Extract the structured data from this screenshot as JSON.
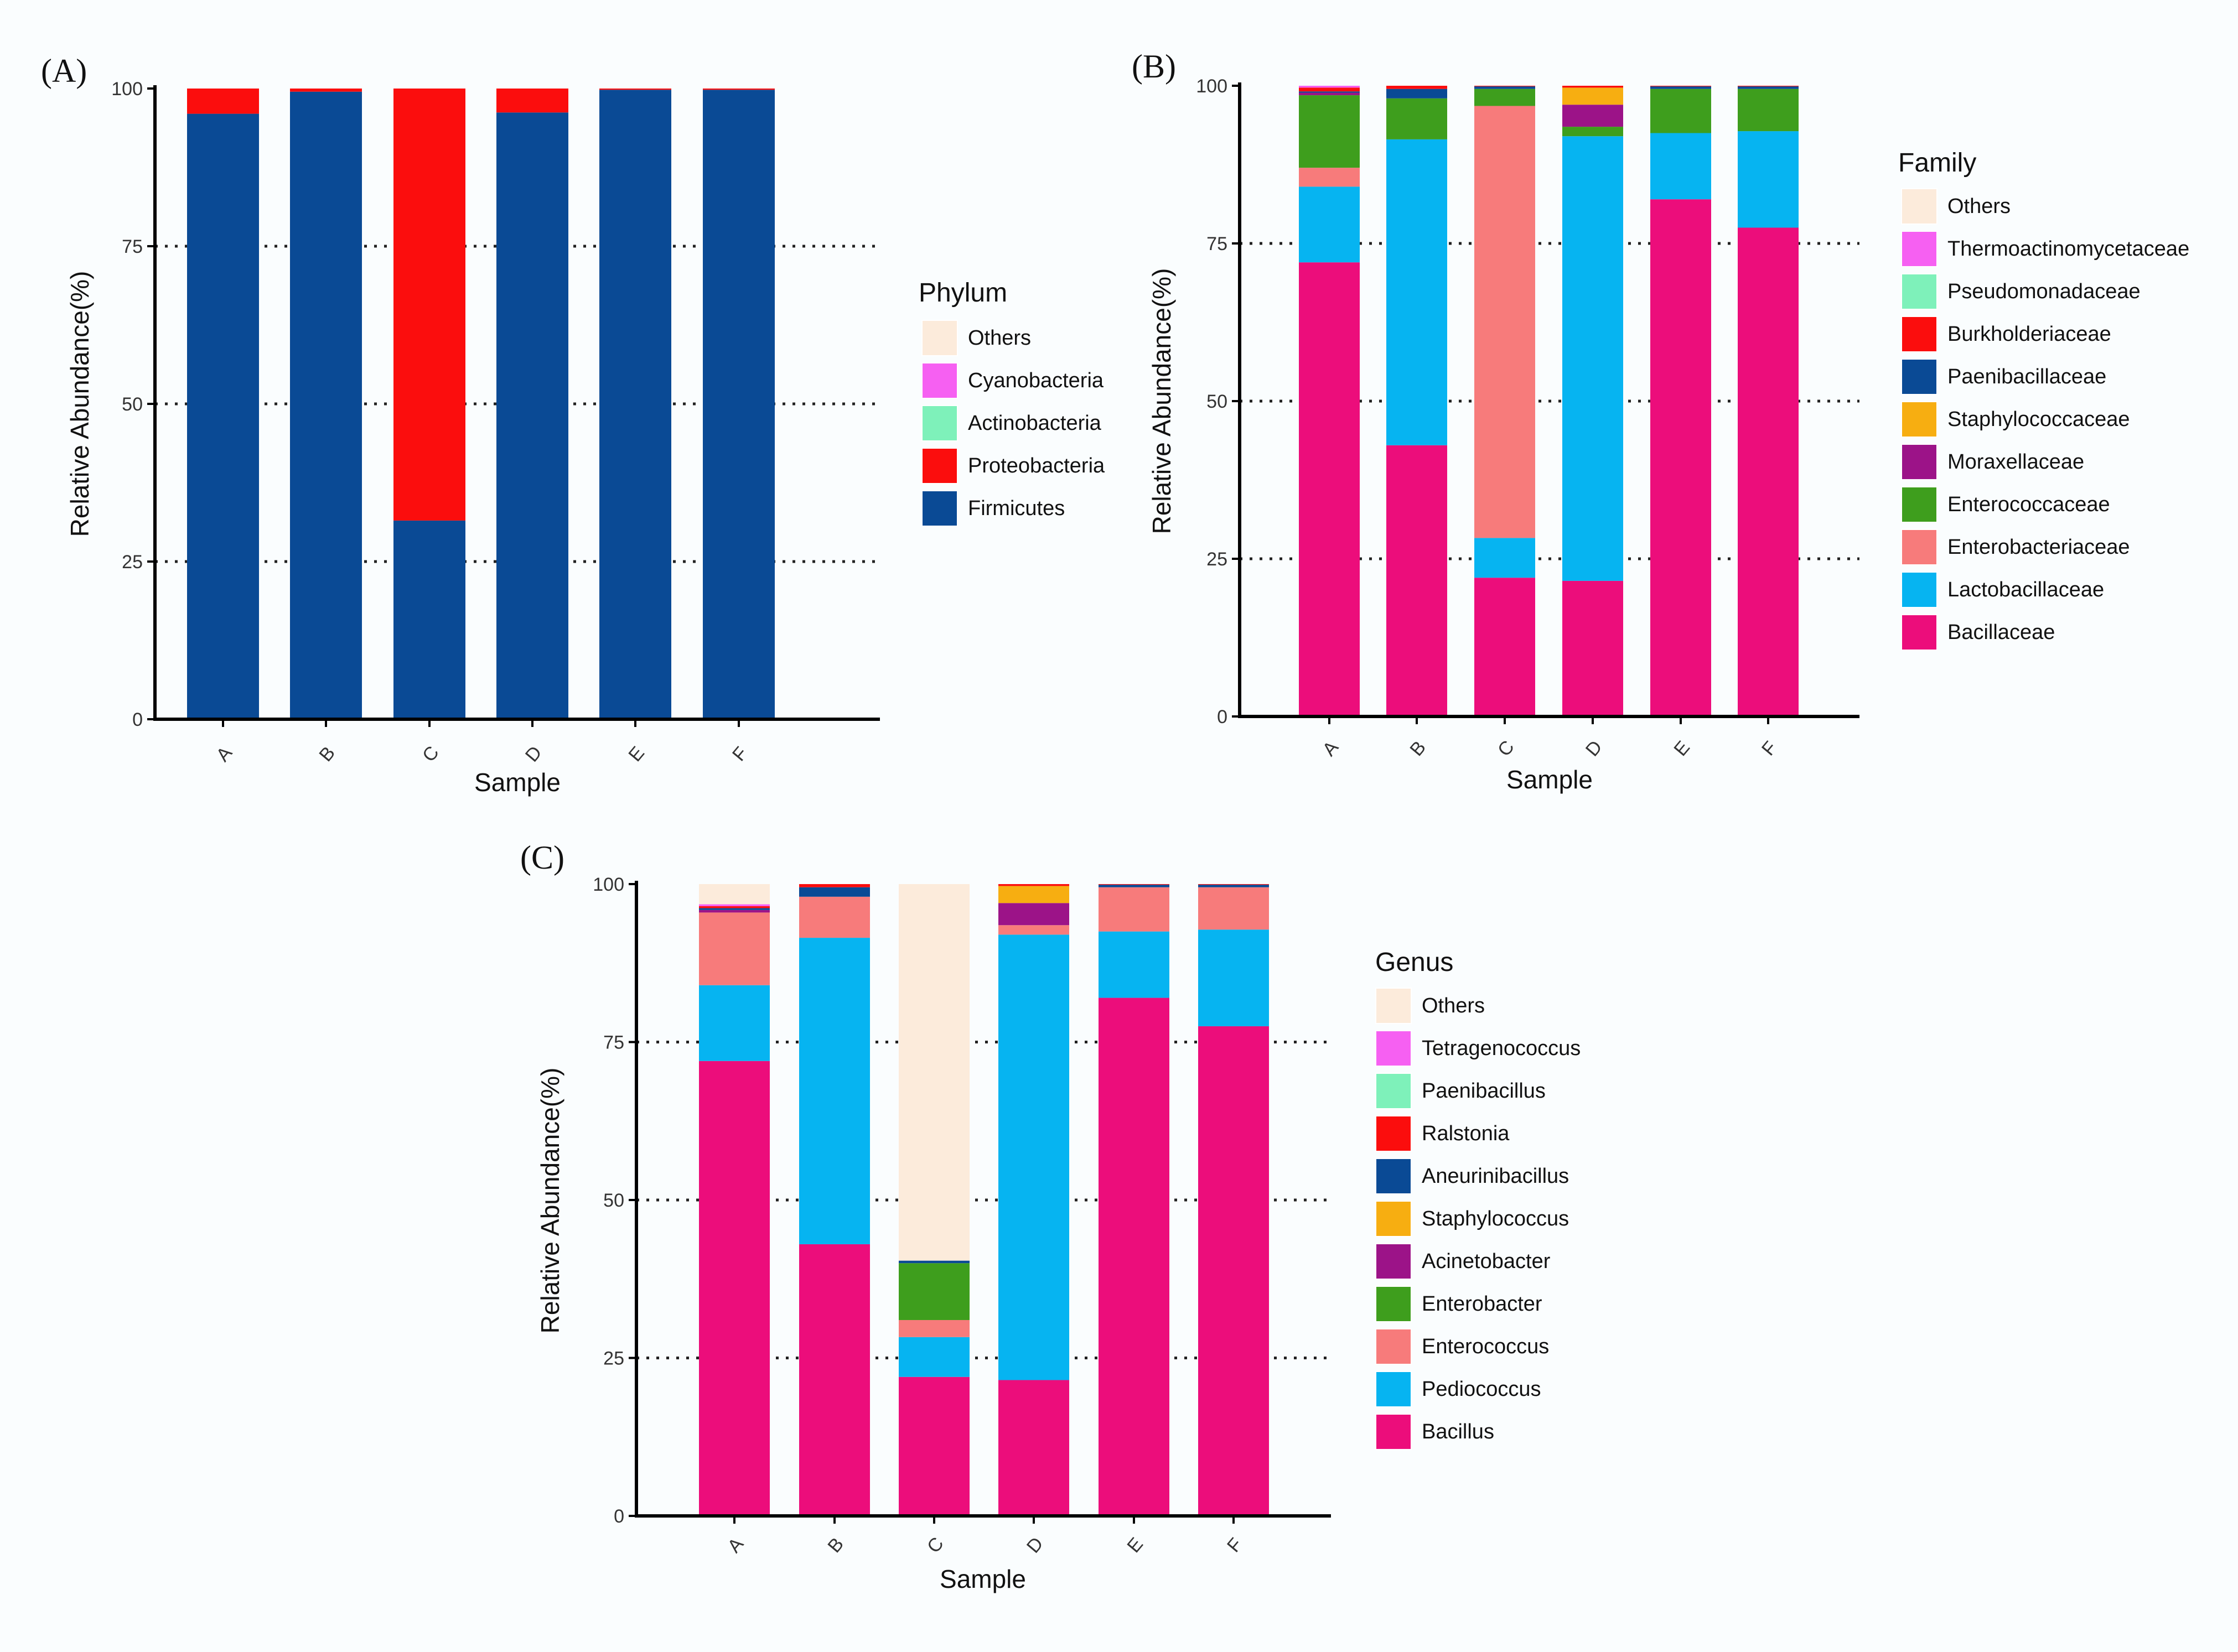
{
  "chart_data": [
    {
      "panel_label": "(A)",
      "type": "bar",
      "stacked": true,
      "categories": [
        "A",
        "B",
        "C",
        "D",
        "E",
        "F"
      ],
      "xlabel": "Sample",
      "ylabel": "Relative Abundance(%)",
      "ylim": [
        0,
        100
      ],
      "yticks": [
        0,
        25,
        50,
        75,
        100
      ],
      "grid": "dotted horizontal lines at 25, 50, 75",
      "legend_title": "Phylum",
      "legend_placement": "right",
      "legend_order": [
        "Others",
        "Cyanobacteria",
        "Actinobacteria",
        "Proteobacteria",
        "Firmicutes"
      ],
      "series": [
        {
          "name": "Firmicutes",
          "color": "#0a4a95",
          "values": [
            96.0,
            99.5,
            31.5,
            96.2,
            99.8,
            99.8
          ]
        },
        {
          "name": "Proteobacteria",
          "color": "#fb0d0d",
          "values": [
            4.0,
            0.5,
            68.5,
            3.8,
            0.2,
            0.2
          ]
        },
        {
          "name": "Actinobacteria",
          "color": "#7ef1ba",
          "values": [
            0,
            0,
            0,
            0,
            0,
            0
          ]
        },
        {
          "name": "Cyanobacteria",
          "color": "#f660f2",
          "values": [
            0,
            0,
            0,
            0,
            0,
            0
          ]
        },
        {
          "name": "Others",
          "color": "#fcebdb",
          "values": [
            0,
            0,
            0,
            0,
            0,
            0
          ]
        }
      ]
    },
    {
      "panel_label": "(B)",
      "type": "bar",
      "stacked": true,
      "categories": [
        "A",
        "B",
        "C",
        "D",
        "E",
        "F"
      ],
      "xlabel": "Sample",
      "ylabel": "Relative Abundance(%)",
      "ylim": [
        0,
        100
      ],
      "yticks": [
        0,
        25,
        50,
        75,
        100
      ],
      "grid": "dotted horizontal lines at 25, 50, 75",
      "legend_title": "Family",
      "legend_placement": "right",
      "legend_order": [
        "Others",
        "Thermoactinomycetaceae",
        "Pseudomonadaceae",
        "Burkholderiaceae",
        "Paenibacillaceae",
        "Staphylococcaceae",
        "Moraxellaceae",
        "Enterococcaceae",
        "Enterobacteriaceae",
        "Lactobacillaceae",
        "Bacillaceae"
      ],
      "series": [
        {
          "name": "Bacillaceae",
          "color": "#ec0d7b",
          "values": [
            72.0,
            43.0,
            22.0,
            21.5,
            82.0,
            77.5
          ]
        },
        {
          "name": "Lactobacillaceae",
          "color": "#06b4f1",
          "values": [
            12.0,
            48.5,
            6.3,
            70.5,
            10.5,
            15.3
          ]
        },
        {
          "name": "Enterobacteriaceae",
          "color": "#f77b7b",
          "values": [
            3.0,
            0,
            68.5,
            0,
            0,
            0
          ]
        },
        {
          "name": "Enterococcaceae",
          "color": "#3e9e1d",
          "values": [
            11.5,
            6.5,
            2.7,
            1.5,
            7.0,
            6.7
          ]
        },
        {
          "name": "Moraxellaceae",
          "color": "#9c1388",
          "values": [
            0.4,
            0,
            0,
            3.5,
            0,
            0
          ]
        },
        {
          "name": "Staphylococcaceae",
          "color": "#f7ae11",
          "values": [
            0,
            0,
            0,
            2.7,
            0,
            0
          ]
        },
        {
          "name": "Paenibacillaceae",
          "color": "#0a4a95",
          "values": [
            0.2,
            1.5,
            0.4,
            0,
            0.4,
            0.4
          ]
        },
        {
          "name": "Burkholderiaceae",
          "color": "#fb0d0d",
          "values": [
            0.6,
            0.5,
            0.1,
            0.3,
            0.1,
            0.1
          ]
        },
        {
          "name": "Pseudomonadaceae",
          "color": "#7ef1ba",
          "values": [
            0,
            0,
            0,
            0,
            0,
            0
          ]
        },
        {
          "name": "Thermoactinomycetaceae",
          "color": "#f660f2",
          "values": [
            0.3,
            0,
            0,
            0,
            0,
            0
          ]
        },
        {
          "name": "Others",
          "color": "#fcebdb",
          "values": [
            0,
            0,
            0,
            0,
            0,
            0
          ]
        }
      ]
    },
    {
      "panel_label": "(C)",
      "type": "bar",
      "stacked": true,
      "categories": [
        "A",
        "B",
        "C",
        "D",
        "E",
        "F"
      ],
      "xlabel": "Sample",
      "ylabel": "Relative Abundance(%)",
      "ylim": [
        0,
        100
      ],
      "yticks": [
        0,
        25,
        50,
        75,
        100
      ],
      "grid": "dotted horizontal lines at 25, 50, 75",
      "legend_title": "Genus",
      "legend_placement": "right",
      "legend_order": [
        "Others",
        "Tetragenococcus",
        "Paenibacillus",
        "Ralstonia",
        "Aneurinibacillus",
        "Staphylococcus",
        "Acinetobacter",
        "Enterobacter",
        "Enterococcus",
        "Pediococcus",
        "Bacillus"
      ],
      "series": [
        {
          "name": "Bacillus",
          "color": "#ec0d7b",
          "values": [
            72.0,
            43.0,
            22.0,
            21.5,
            82.0,
            77.5
          ]
        },
        {
          "name": "Pediococcus",
          "color": "#06b4f1",
          "values": [
            12.0,
            48.5,
            6.3,
            70.5,
            10.5,
            15.3
          ]
        },
        {
          "name": "Enterococcus",
          "color": "#f77b7b",
          "values": [
            11.5,
            6.5,
            2.7,
            1.5,
            7.0,
            6.7
          ]
        },
        {
          "name": "Enterobacter",
          "color": "#3e9e1d",
          "values": [
            0,
            0,
            9.0,
            0,
            0,
            0
          ]
        },
        {
          "name": "Acinetobacter",
          "color": "#9c1388",
          "values": [
            0.4,
            0,
            0,
            3.5,
            0,
            0
          ]
        },
        {
          "name": "Staphylococcus",
          "color": "#f7ae11",
          "values": [
            0,
            0,
            0,
            2.7,
            0,
            0
          ]
        },
        {
          "name": "Aneurinibacillus",
          "color": "#0a4a95",
          "values": [
            0.3,
            1.5,
            0.4,
            0,
            0.4,
            0.4
          ]
        },
        {
          "name": "Ralstonia",
          "color": "#fb0d0d",
          "values": [
            0.3,
            0.5,
            0,
            0.3,
            0.1,
            0.1
          ]
        },
        {
          "name": "Paenibacillus",
          "color": "#7ef1ba",
          "values": [
            0,
            0,
            0,
            0,
            0,
            0
          ]
        },
        {
          "name": "Tetragenococcus",
          "color": "#f660f2",
          "values": [
            0.3,
            0,
            0,
            0,
            0,
            0
          ]
        },
        {
          "name": "Others",
          "color": "#fcebdb",
          "values": [
            3.2,
            0,
            59.6,
            0,
            0,
            0
          ]
        }
      ]
    }
  ]
}
